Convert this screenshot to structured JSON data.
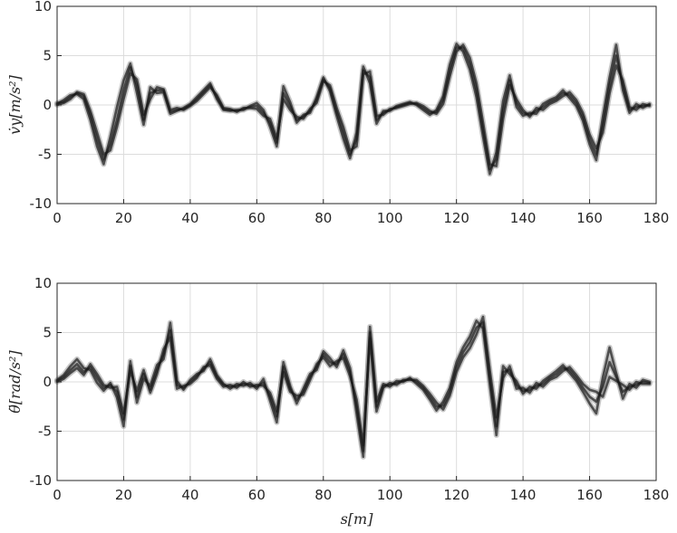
{
  "chart_data": [
    {
      "type": "line",
      "ylabel": "v̇y[m/s²]",
      "xlabel": "",
      "xlim": [
        0,
        180
      ],
      "ylim": [
        -10,
        10
      ],
      "xticks": [
        0,
        20,
        40,
        60,
        80,
        100,
        120,
        140,
        160,
        180
      ],
      "xtick_labels": [
        "0",
        "20",
        "40",
        "60",
        "80",
        "100",
        "120",
        "140",
        "160",
        "180"
      ],
      "yticks": [
        -10,
        -5,
        0,
        5,
        10
      ],
      "ytick_labels": [
        "-10",
        "-5",
        "0",
        "5",
        "10"
      ],
      "grid": true,
      "line_color": "#1a1a1a",
      "band_color": "#9a9a9a",
      "x": [
        0,
        2,
        4,
        6,
        8,
        10,
        12,
        14,
        16,
        18,
        20,
        22,
        24,
        26,
        28,
        30,
        32,
        34,
        36,
        38,
        40,
        42,
        44,
        46,
        48,
        50,
        52,
        54,
        56,
        58,
        60,
        62,
        64,
        66,
        68,
        70,
        72,
        74,
        76,
        78,
        80,
        82,
        84,
        86,
        88,
        90,
        92,
        94,
        96,
        98,
        100,
        102,
        104,
        106,
        108,
        110,
        112,
        114,
        116,
        118,
        120,
        122,
        124,
        126,
        128,
        130,
        132,
        134,
        136,
        138,
        140,
        142,
        144,
        146,
        148,
        150,
        152,
        154,
        156,
        158,
        160,
        162,
        164,
        166,
        168,
        170,
        172,
        174,
        176,
        178
      ],
      "series": [
        {
          "values": [
            0.2,
            0.3,
            0.8,
            1.2,
            0.9,
            -1,
            -3.5,
            -5.5,
            -4,
            -1.5,
            1.5,
            3.8,
            2,
            -1.5,
            1.2,
            1.5,
            1.5,
            -0.7,
            -0.5,
            -0.4,
            0,
            0.6,
            1.3,
            2,
            0.8,
            -0.4,
            -0.5,
            -0.6,
            -0.4,
            -0.2,
            -0.1,
            -0.8,
            -1.8,
            -3.8,
            1.2,
            -0.1,
            -1.5,
            -1.2,
            -0.6,
            0.5,
            2.6,
            1.7,
            -0.7,
            -2.8,
            -5,
            -3.5,
            3.5,
            2.8,
            -1.5,
            -0.8,
            -0.5,
            -0.2,
            0,
            0.2,
            0.1,
            -0.3,
            -0.8,
            -0.7,
            0.5,
            3.5,
            5.8,
            5.8,
            4.2,
            1.5,
            -2.5,
            -6.5,
            -5.5,
            -0.5,
            2.5,
            0.2,
            -0.8,
            -1,
            -0.6,
            -0.2,
            0.3,
            0.6,
            1.2,
            1,
            0.2,
            -1.2,
            -3.5,
            -5,
            -2,
            2,
            5,
            2,
            -0.5,
            -0.2,
            -0.1,
            0
          ]
        },
        {
          "values": [
            0.1,
            0.5,
            1,
            1.1,
            0.6,
            -1.5,
            -4.2,
            -6,
            -3.2,
            -0.2,
            2.5,
            4.2,
            1.2,
            -2,
            1.8,
            1.2,
            1.3,
            -0.9,
            -0.6,
            -0.3,
            0.1,
            0.8,
            1.5,
            2.2,
            0.6,
            -0.5,
            -0.6,
            -0.5,
            -0.5,
            -0.1,
            0.2,
            -0.5,
            -2.2,
            -4.2,
            1.9,
            0.3,
            -1.8,
            -1,
            -0.8,
            0.8,
            2.8,
            1.4,
            -1.1,
            -3.4,
            -5.4,
            -2.8,
            3.9,
            2.2,
            -1.9,
            -0.6,
            -0.6,
            -0.1,
            0.1,
            0.3,
            0,
            -0.5,
            -1,
            -0.5,
            0.9,
            4.1,
            6.2,
            5.4,
            3.6,
            0.8,
            -3.2,
            -7,
            -4.8,
            0.4,
            3,
            -0.2,
            -1.1,
            -0.8,
            -0.9,
            0.1,
            0.5,
            0.8,
            1.5,
            0.7,
            -0.1,
            -1.6,
            -4,
            -5.6,
            -1.2,
            2.8,
            6.1,
            1.5,
            -0.8,
            0.1,
            -0.3,
            0.1
          ]
        },
        {
          "values": [
            0,
            0.2,
            0.6,
            1.3,
            1.1,
            -0.6,
            -2.8,
            -5,
            -4.6,
            -2.2,
            0.6,
            3.2,
            2.6,
            -1,
            0.6,
            1.8,
            1.6,
            -0.5,
            -0.3,
            -0.5,
            -0.1,
            0.4,
            1.1,
            1.8,
            1,
            -0.3,
            -0.4,
            -0.7,
            -0.3,
            -0.3,
            -0.4,
            -1.1,
            -1.4,
            -3.4,
            0.6,
            -0.5,
            -1.2,
            -1.4,
            -0.4,
            0.2,
            2.4,
            2,
            -0.3,
            -2.2,
            -4.6,
            -4.2,
            3.1,
            3.4,
            -1.1,
            -1,
            -0.4,
            -0.3,
            -0.1,
            0.1,
            0.2,
            -0.1,
            -0.6,
            -0.9,
            0.1,
            2.9,
            5.4,
            6.1,
            4.8,
            2.2,
            -1.8,
            -6,
            -6.2,
            -1.4,
            2,
            0.6,
            -0.5,
            -1.2,
            -0.3,
            -0.5,
            0.1,
            0.4,
            0.9,
            1.3,
            0.5,
            -0.8,
            -3,
            -4.4,
            -2.8,
            1.2,
            4,
            2.5,
            -0.2,
            -0.5,
            0.1,
            -0.1
          ]
        }
      ]
    },
    {
      "type": "line",
      "ylabel": "θ̈[rad/s²]",
      "xlabel": "s[m]",
      "xlim": [
        0,
        180
      ],
      "ylim": [
        -10,
        10
      ],
      "xticks": [
        0,
        20,
        40,
        60,
        80,
        100,
        120,
        140,
        160,
        180
      ],
      "xtick_labels": [
        "0",
        "20",
        "40",
        "60",
        "80",
        "100",
        "120",
        "140",
        "160",
        "180"
      ],
      "yticks": [
        -10,
        -5,
        0,
        5,
        10
      ],
      "ytick_labels": [
        "-10",
        "-5",
        "0",
        "5",
        "10"
      ],
      "grid": true,
      "line_color": "#1a1a1a",
      "band_color": "#9a9a9a",
      "x": [
        0,
        2,
        4,
        6,
        8,
        10,
        12,
        14,
        16,
        18,
        20,
        22,
        24,
        26,
        28,
        30,
        32,
        34,
        36,
        38,
        40,
        42,
        44,
        46,
        48,
        50,
        52,
        54,
        56,
        58,
        60,
        62,
        64,
        66,
        68,
        70,
        72,
        74,
        76,
        78,
        80,
        82,
        84,
        86,
        88,
        90,
        92,
        94,
        96,
        98,
        100,
        102,
        104,
        106,
        108,
        110,
        112,
        114,
        116,
        118,
        120,
        122,
        124,
        126,
        128,
        130,
        132,
        134,
        136,
        138,
        140,
        142,
        144,
        146,
        148,
        150,
        152,
        154,
        156,
        158,
        160,
        162,
        164,
        166,
        168,
        170,
        172,
        174,
        176,
        178
      ],
      "series": [
        {
          "values": [
            0.1,
            0.5,
            1.2,
            1.8,
            1,
            1.5,
            0.4,
            -0.6,
            -0.3,
            -1,
            -3.8,
            1.6,
            -1.5,
            0.8,
            -0.8,
            1.2,
            2.8,
            5.2,
            -0.3,
            -0.6,
            0,
            0.6,
            1.3,
            2,
            0.5,
            -0.3,
            -0.5,
            -0.4,
            -0.2,
            -0.3,
            -0.5,
            -0.1,
            -1.5,
            -3.5,
            1.5,
            -0.7,
            -1.8,
            -1,
            0.5,
            1.5,
            2.8,
            2,
            1.8,
            2.8,
            1,
            -2.5,
            -7,
            5,
            -2.5,
            -0.4,
            -0.3,
            -0.1,
            0.1,
            0.3,
            0,
            -0.6,
            -1.5,
            -2.5,
            -2.4,
            -1,
            1.5,
            3,
            4,
            5.5,
            6,
            0.5,
            -4.5,
            1,
            1.2,
            -0.3,
            -0.9,
            -0.8,
            -0.4,
            -0.2,
            0.4,
            0.8,
            1.4,
            1.2,
            0.4,
            -0.6,
            -1.5,
            -2,
            -0.5,
            2,
            0.5,
            -1,
            -0.5,
            -0.3,
            0,
            -0.1
          ]
        },
        {
          "values": [
            0.2,
            0.7,
            1.6,
            2.3,
            1.4,
            1.2,
            -0.1,
            -0.9,
            -0.1,
            -1.6,
            -4.5,
            2.1,
            -2.1,
            0.3,
            -0.4,
            1.7,
            2.3,
            6,
            0.1,
            -0.8,
            0.2,
            0.8,
            1.1,
            2.3,
            0.7,
            -0.2,
            -0.7,
            -0.2,
            -0.4,
            -0.1,
            -0.7,
            0.3,
            -1.9,
            -4.1,
            2,
            -0.4,
            -2.2,
            -0.7,
            0.8,
            1.2,
            3.1,
            2.4,
            1.5,
            3.2,
            1.4,
            -3.2,
            -7.6,
            5.6,
            -2,
            -0.2,
            -0.5,
            0.1,
            0,
            0.4,
            -0.2,
            -0.8,
            -1.8,
            -2.9,
            -2,
            -0.6,
            2,
            3.5,
            4.6,
            6.2,
            5.4,
            -0.2,
            -5.4,
            1.6,
            0.8,
            0.1,
            -1.2,
            -0.5,
            -0.7,
            0.1,
            0.6,
            1.1,
            1.7,
            0.9,
            0.1,
            -1,
            -2.2,
            -3.2,
            0.5,
            3.5,
            0.9,
            -1.7,
            -0.2,
            -0.6,
            0.2,
            0
          ]
        },
        {
          "values": [
            0,
            0.3,
            0.9,
            1.4,
            0.7,
            1.8,
            0.8,
            -0.3,
            -0.6,
            -0.5,
            -3.2,
            1.1,
            -0.9,
            1.2,
            -1.1,
            0.8,
            3.3,
            4.5,
            -0.7,
            -0.4,
            -0.2,
            0.4,
            1.5,
            1.7,
            0.3,
            -0.5,
            -0.3,
            -0.6,
            0,
            -0.5,
            -0.3,
            -0.4,
            -1.1,
            -3,
            1,
            -1,
            -1.4,
            -1.3,
            0.2,
            1.8,
            2.5,
            1.6,
            2.1,
            2.4,
            0.6,
            -1.8,
            -6.4,
            4.4,
            -3,
            -0.6,
            -0.1,
            -0.3,
            0.2,
            0.2,
            0.2,
            -0.4,
            -1.2,
            -2.1,
            -2.8,
            -1.4,
            1,
            2.5,
            3.4,
            4.8,
            6.6,
            1.2,
            -3.6,
            0.4,
            1.6,
            -0.7,
            -0.6,
            -1.1,
            -0.1,
            -0.5,
            0.2,
            0.5,
            1.1,
            1.5,
            0.7,
            -0.2,
            -0.8,
            -1,
            -1.5,
            0.5,
            0.1,
            -0.3,
            -0.8,
            0,
            -0.2,
            -0.2
          ]
        }
      ]
    }
  ]
}
